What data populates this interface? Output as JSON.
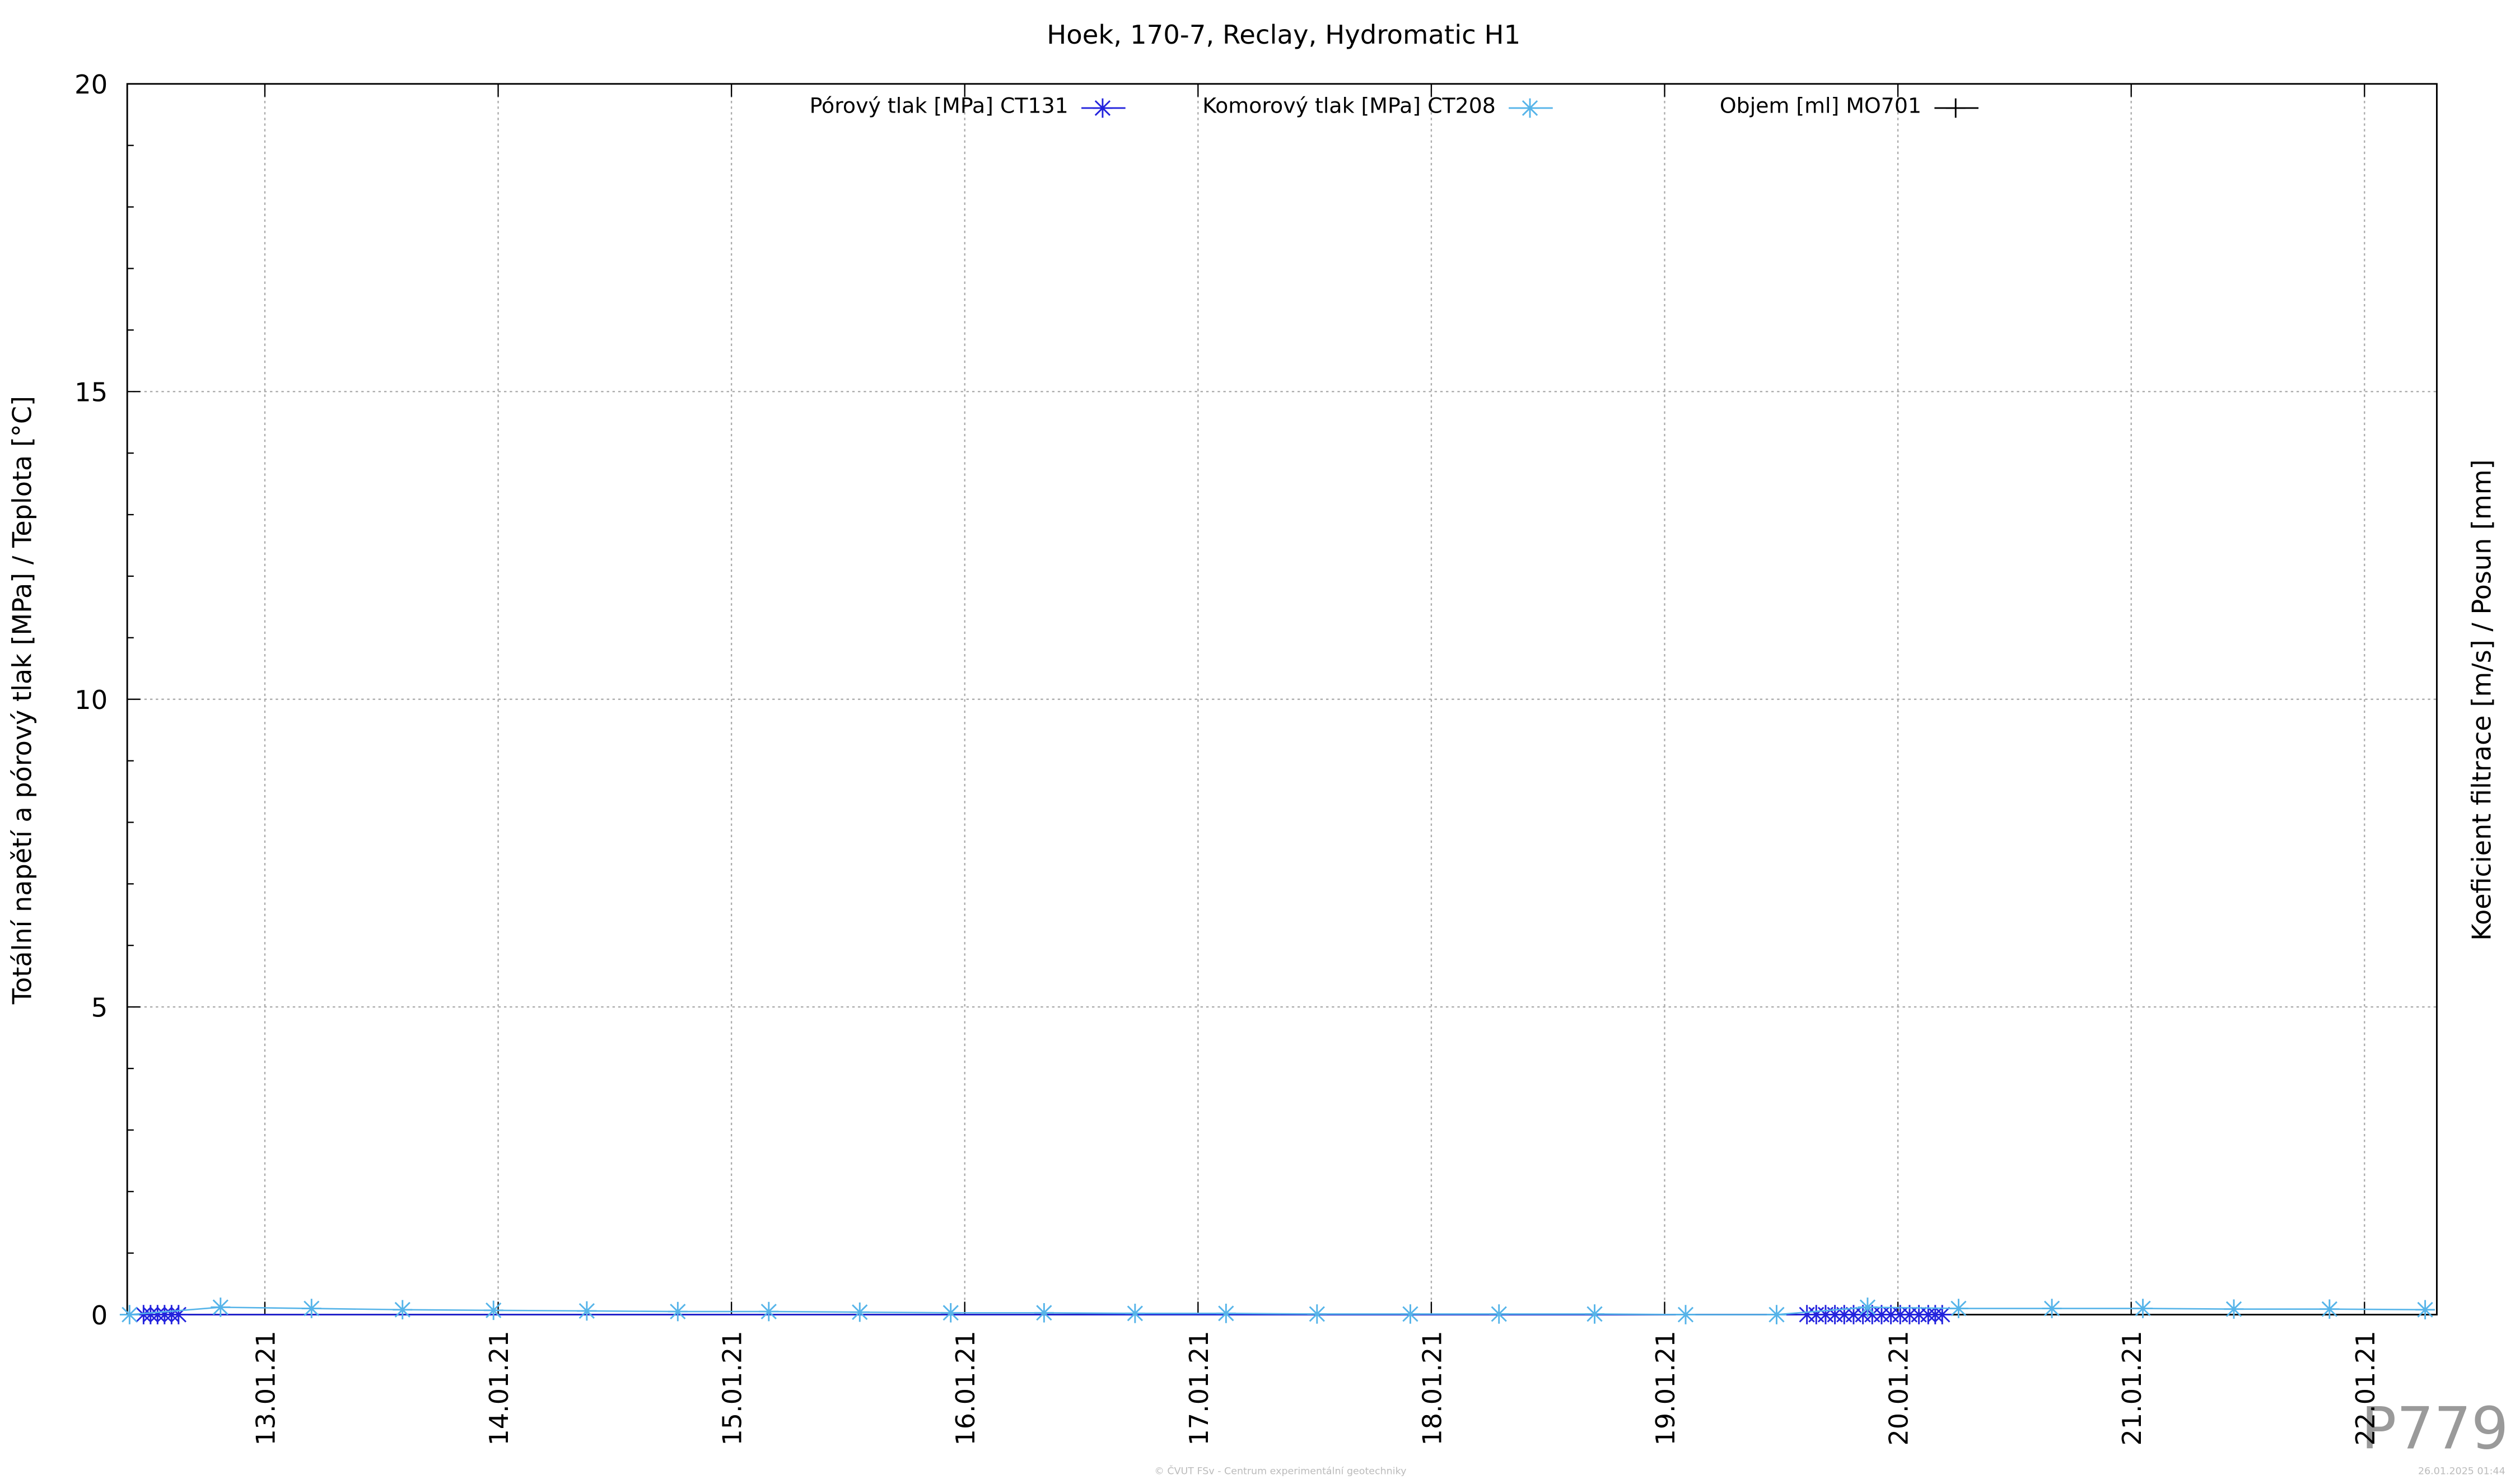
{
  "chart_data": {
    "type": "line",
    "title": "Hoek, 170-7, Reclay, Hydromatic H1",
    "y_label": "Totální napětí a pórový tlak [MPa] / Teplota [°C]",
    "y2_label": "Koeficient filtrace [m/s] / Posun [mm]",
    "xlim": [
      12.41,
      22.31
    ],
    "xticks": [
      {
        "value": 13,
        "label": "13.01.21"
      },
      {
        "value": 14,
        "label": "14.01.21"
      },
      {
        "value": 15,
        "label": "15.01.21"
      },
      {
        "value": 16,
        "label": "16.01.21"
      },
      {
        "value": 17,
        "label": "17.01.21"
      },
      {
        "value": 18,
        "label": "18.01.21"
      },
      {
        "value": 19,
        "label": "19.01.21"
      },
      {
        "value": 20,
        "label": "20.01.21"
      },
      {
        "value": 21,
        "label": "21.01.21"
      },
      {
        "value": 22,
        "label": "22.01.21"
      }
    ],
    "ylim": [
      0,
      20
    ],
    "yticks": [
      0,
      5,
      10,
      15,
      20
    ],
    "grid": true,
    "series": [
      {
        "name": "Pórový tlak [MPa] CT131",
        "color": "#2323dd",
        "marker": "star",
        "x": [
          12.48,
          12.51,
          12.54,
          12.57,
          12.6,
          12.63,
          19.61,
          19.65,
          19.69,
          19.73,
          19.77,
          19.81,
          19.85,
          19.89,
          19.93,
          19.97,
          20.01,
          20.05,
          20.09,
          20.13,
          20.16,
          20.19
        ],
        "values": [
          0,
          0,
          0,
          0,
          0,
          0,
          0,
          0,
          0,
          0,
          0,
          0,
          0,
          0,
          0,
          0,
          0,
          0,
          0,
          0,
          0,
          0
        ]
      },
      {
        "name": "Komorový tlak [MPa] CT208",
        "color": "#56b4e9",
        "marker": "star",
        "x": [
          12.42,
          12.81,
          13.2,
          13.59,
          13.98,
          14.38,
          14.77,
          15.16,
          15.55,
          15.94,
          16.34,
          16.73,
          17.12,
          17.51,
          17.91,
          18.29,
          18.7,
          19.09,
          19.48,
          19.87,
          20.26,
          20.66,
          21.05,
          21.44,
          21.85,
          22.26
        ],
        "values": [
          0,
          0.12,
          0.1,
          0.08,
          0.07,
          0.06,
          0.05,
          0.05,
          0.04,
          0.03,
          0.03,
          0.02,
          0.02,
          0.01,
          0.01,
          0.01,
          0.01,
          0,
          0,
          0.12,
          0.1,
          0.1,
          0.1,
          0.09,
          0.09,
          0.08
        ]
      },
      {
        "name": "Objem [ml] MO701",
        "color": "#000000",
        "marker": "plus",
        "x": [],
        "values": []
      }
    ],
    "watermark": "P779",
    "footer": "© ČVUT FSv - Centrum experimentální geotechniky",
    "timestamp": "26.01.2025 01:44"
  }
}
